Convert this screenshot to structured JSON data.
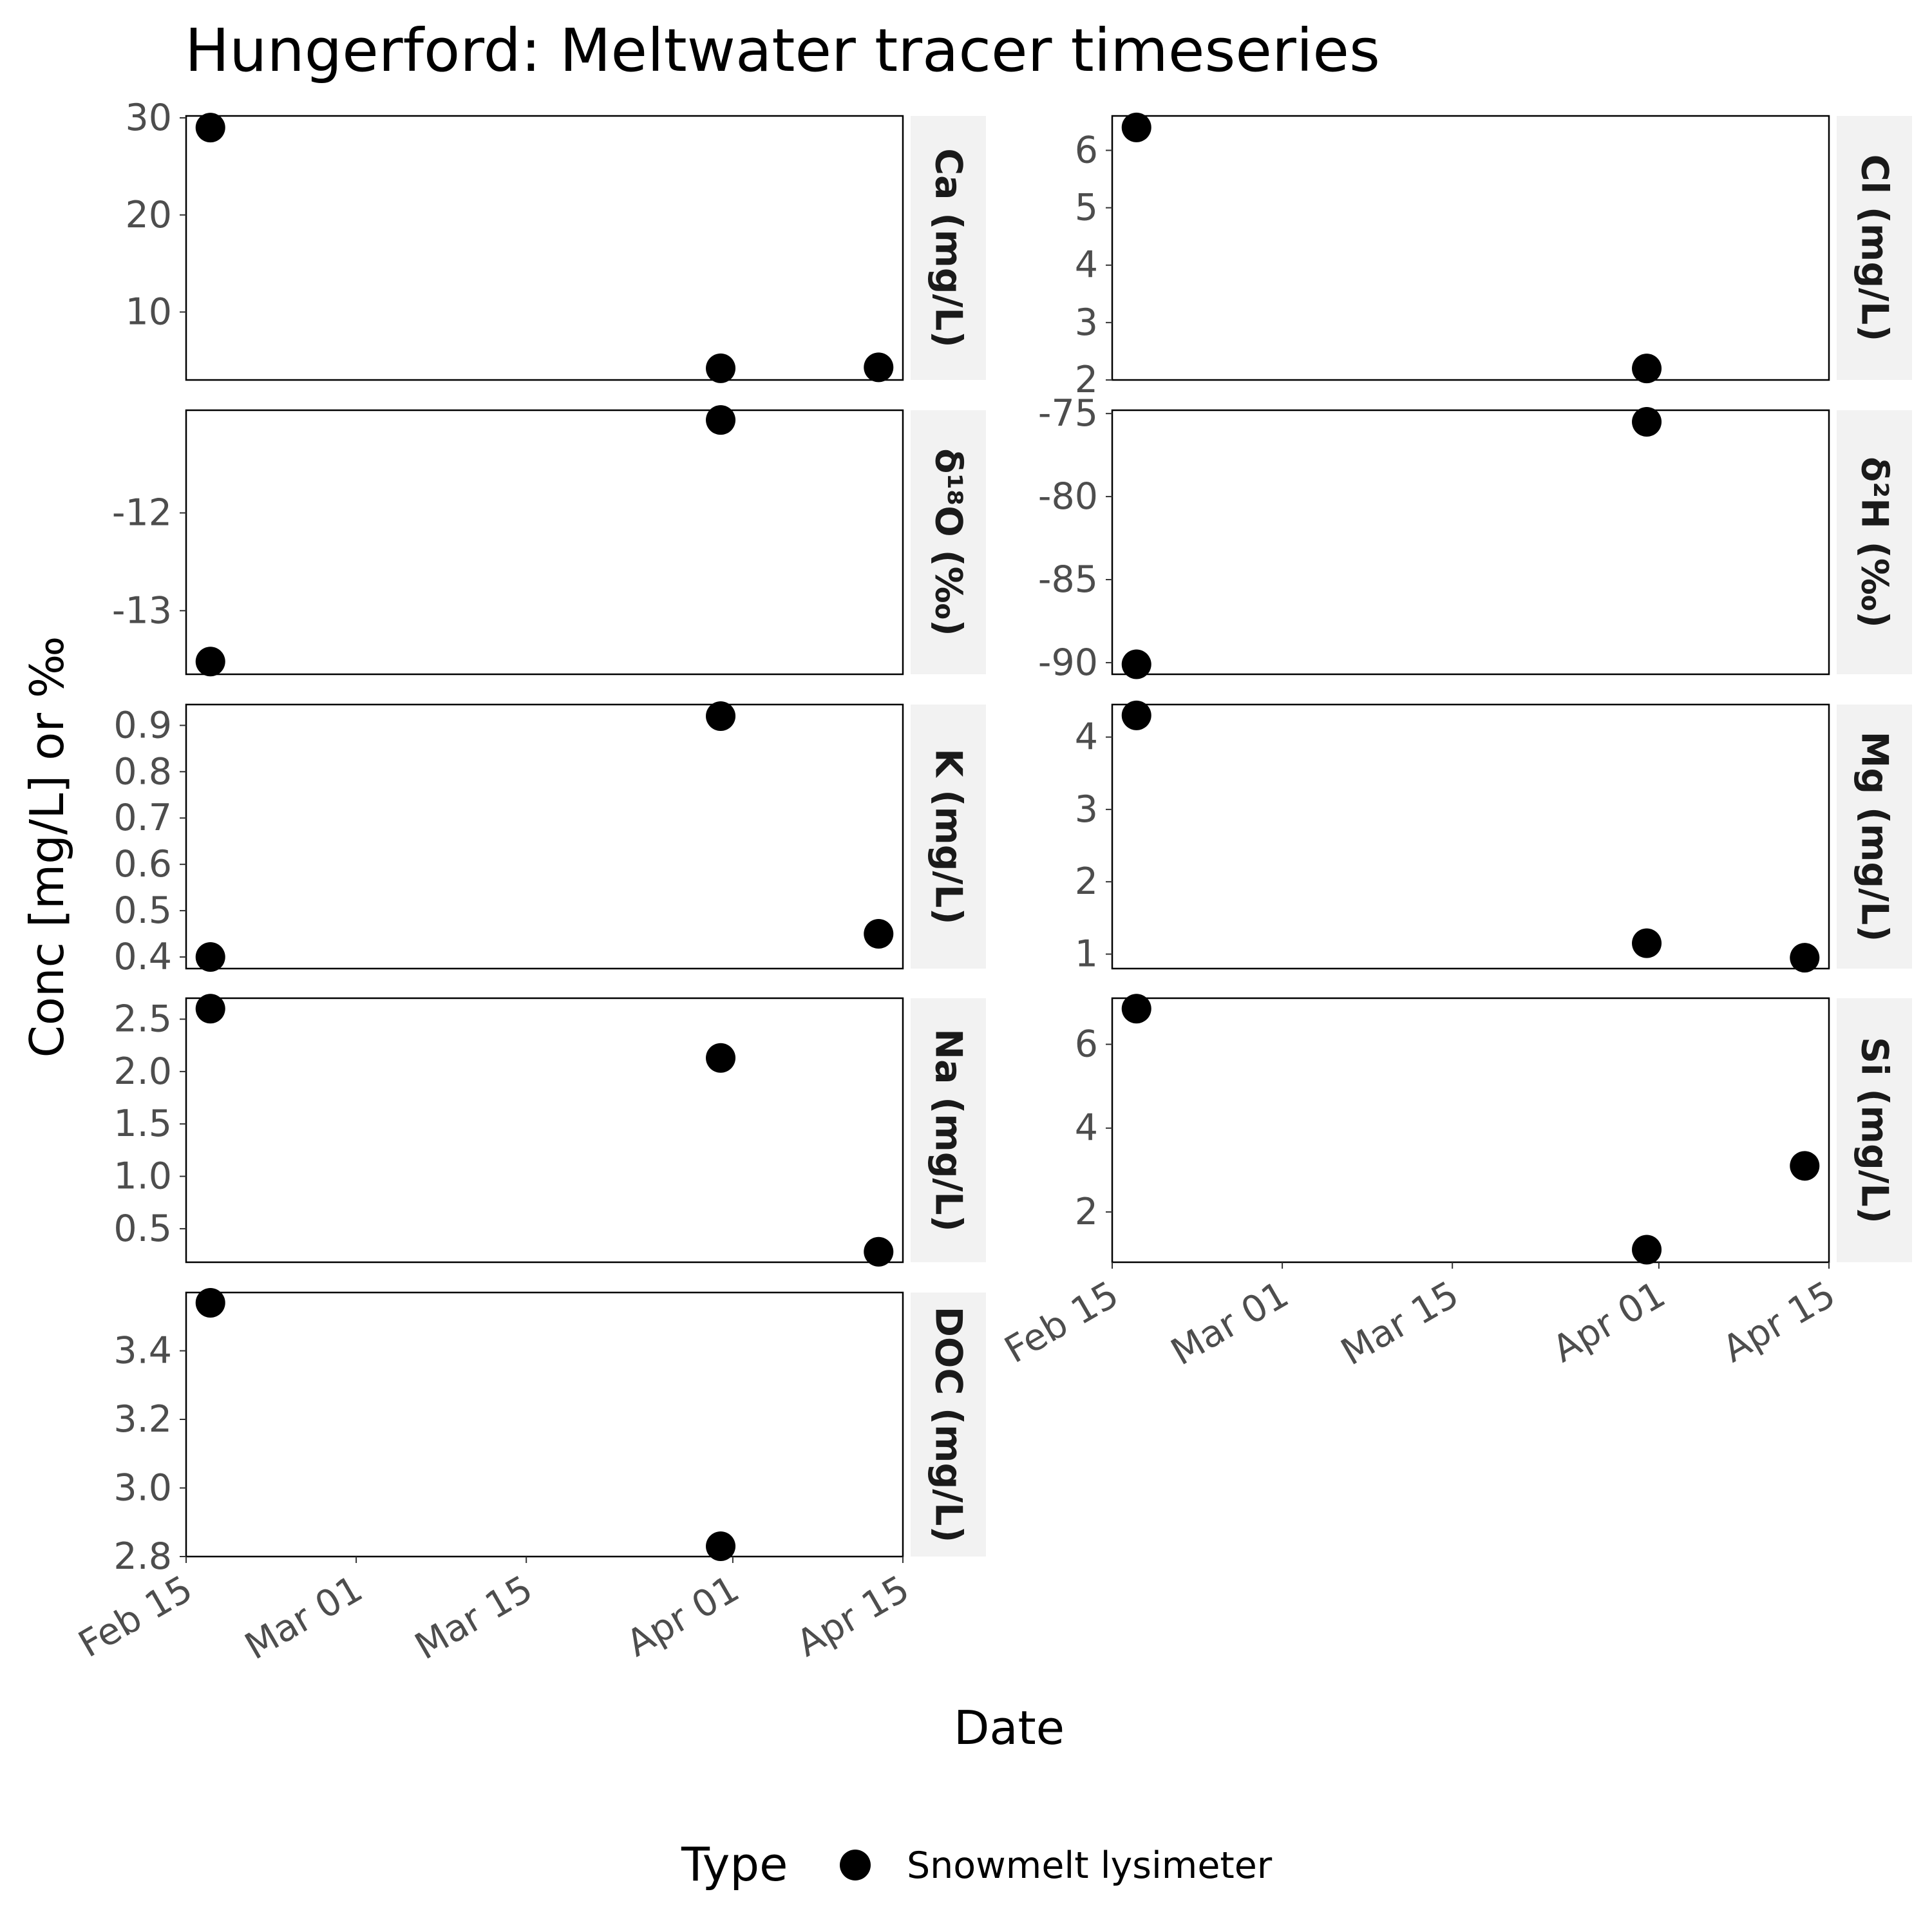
{
  "chart_data": {
    "type": "scatter",
    "title": "Hungerford: Meltwater tracer timeseries",
    "xlabel": "Date",
    "ylabel": "Conc [mg/L] or ‰",
    "x_ticks": [
      "Feb 15",
      "Mar 01",
      "Mar 15",
      "Apr 01",
      "Apr 15"
    ],
    "x_tick_dates": [
      "2023-02-15",
      "2023-03-01",
      "2023-03-15",
      "2023-04-01",
      "2023-04-15"
    ],
    "xlim": [
      "2023-02-15",
      "2023-04-15"
    ],
    "legend": {
      "title": "Type",
      "position": "bottom",
      "entries": [
        {
          "label": "Snowmelt lysimeter",
          "color": "#000000"
        }
      ]
    },
    "marker_color": "#000000",
    "strip_background": "#f2f2f2",
    "panels": [
      {
        "label": "Ca (mg/L)",
        "ylim": [
          3,
          30.2
        ],
        "y_ticks": [
          10,
          20,
          30
        ],
        "y_tick_labels": [
          "10",
          "20",
          "30"
        ],
        "points": [
          {
            "x": "2023-02-17",
            "y": 29
          },
          {
            "x": "2023-03-31",
            "y": 4.2
          },
          {
            "x": "2023-04-13",
            "y": 4.3
          }
        ]
      },
      {
        "label": "Cl (mg/L)",
        "ylim": [
          2,
          6.6
        ],
        "y_ticks": [
          2,
          3,
          4,
          5,
          6
        ],
        "y_tick_labels": [
          "2",
          "3",
          "4",
          "5",
          "6"
        ],
        "points": [
          {
            "x": "2023-02-17",
            "y": 6.4
          },
          {
            "x": "2023-03-31",
            "y": 2.2
          }
        ]
      },
      {
        "label": "δ¹⁸O (‰)",
        "ylim": [
          -13.65,
          -10.95
        ],
        "y_ticks": [
          -12,
          -13
        ],
        "y_tick_labels": [
          "-12",
          "-13"
        ],
        "points": [
          {
            "x": "2023-02-17",
            "y": -13.52
          },
          {
            "x": "2023-03-31",
            "y": -11.05
          }
        ]
      },
      {
        "label": "δ²H (‰)",
        "ylim": [
          -90.7,
          -74.8
        ],
        "y_ticks": [
          -75,
          -80,
          -85,
          -90
        ],
        "y_tick_labels": [
          "-75",
          "-80",
          "-85",
          "-90"
        ],
        "points": [
          {
            "x": "2023-02-17",
            "y": -90.1
          },
          {
            "x": "2023-03-31",
            "y": -75.5
          }
        ]
      },
      {
        "label": "K (mg/L)",
        "ylim": [
          0.375,
          0.945
        ],
        "y_ticks": [
          0.4,
          0.5,
          0.6,
          0.7,
          0.8,
          0.9
        ],
        "y_tick_labels": [
          "0.4",
          "0.5",
          "0.6",
          "0.7",
          "0.8",
          "0.9"
        ],
        "points": [
          {
            "x": "2023-02-17",
            "y": 0.4
          },
          {
            "x": "2023-03-31",
            "y": 0.92
          },
          {
            "x": "2023-04-13",
            "y": 0.45
          }
        ]
      },
      {
        "label": "Mg (mg/L)",
        "ylim": [
          0.8,
          4.45
        ],
        "y_ticks": [
          1,
          2,
          3,
          4
        ],
        "y_tick_labels": [
          "1",
          "2",
          "3",
          "4"
        ],
        "points": [
          {
            "x": "2023-02-17",
            "y": 4.3
          },
          {
            "x": "2023-03-31",
            "y": 1.15
          },
          {
            "x": "2023-04-13",
            "y": 0.95
          }
        ]
      },
      {
        "label": "Na (mg/L)",
        "ylim": [
          0.18,
          2.7
        ],
        "y_ticks": [
          0.5,
          1.0,
          1.5,
          2.0,
          2.5
        ],
        "y_tick_labels": [
          "0.5",
          "1.0",
          "1.5",
          "2.0",
          "2.5"
        ],
        "points": [
          {
            "x": "2023-02-17",
            "y": 2.6
          },
          {
            "x": "2023-03-31",
            "y": 2.13
          },
          {
            "x": "2023-04-13",
            "y": 0.28
          }
        ]
      },
      {
        "label": "Si (mg/L)",
        "ylim": [
          0.8,
          7.1
        ],
        "y_ticks": [
          2,
          4,
          6
        ],
        "y_tick_labels": [
          "2",
          "4",
          "6"
        ],
        "points": [
          {
            "x": "2023-02-17",
            "y": 6.85
          },
          {
            "x": "2023-03-31",
            "y": 1.1
          },
          {
            "x": "2023-04-13",
            "y": 3.1
          }
        ]
      },
      {
        "label": "DOC (mg/L)",
        "ylim": [
          2.8,
          3.57
        ],
        "y_ticks": [
          2.8,
          3.0,
          3.2,
          3.4
        ],
        "y_tick_labels": [
          "2.8",
          "3.0",
          "3.2",
          "3.4"
        ],
        "points": [
          {
            "x": "2023-02-17",
            "y": 3.54
          },
          {
            "x": "2023-03-31",
            "y": 2.83
          }
        ]
      }
    ]
  }
}
